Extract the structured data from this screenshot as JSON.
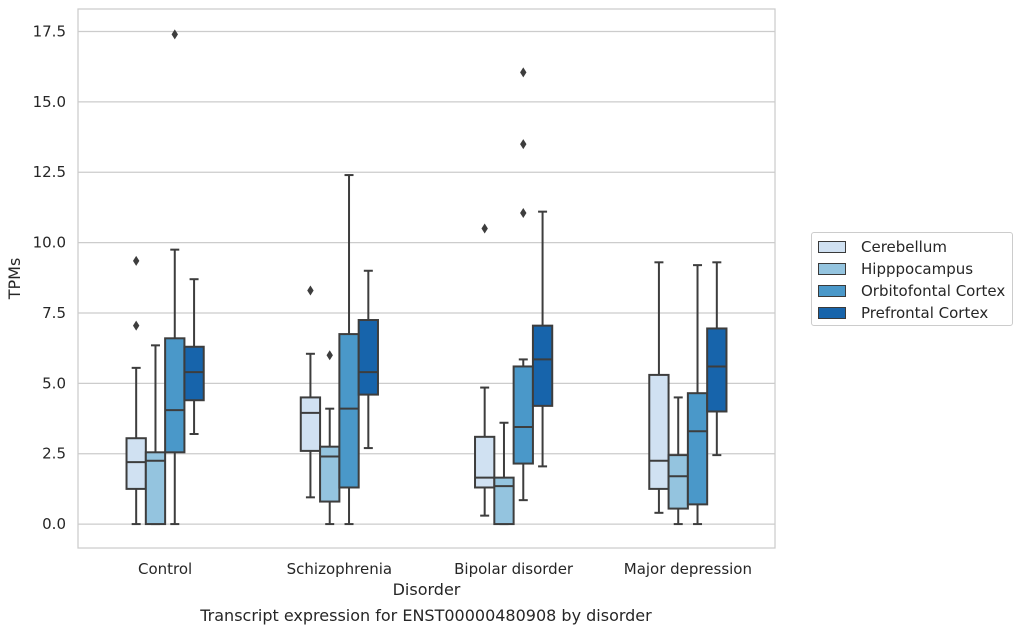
{
  "chart_data": {
    "type": "box",
    "caption": "Transcript expression for ENST00000480908 by disorder",
    "xlabel": "Disorder",
    "ylabel": "TPMs",
    "ylim": [
      -0.85,
      18.3
    ],
    "yticks": [
      0.0,
      2.5,
      5.0,
      7.5,
      10.0,
      12.5,
      15.0,
      17.5
    ],
    "ytick_labels": [
      "0.0",
      "2.5",
      "5.0",
      "7.5",
      "10.0",
      "12.5",
      "15.0",
      "17.5"
    ],
    "grid": "y",
    "legend_position": "right",
    "categories": [
      "Control",
      "Schizophrenia",
      "Bipolar disorder",
      "Major depression"
    ],
    "series": [
      {
        "name": "Cerebellum",
        "color": "#d0e1f2",
        "boxes": [
          {
            "whisker_low": 0.0,
            "q1": 1.25,
            "median": 2.2,
            "q3": 3.05,
            "whisker_high": 5.55,
            "outliers": [
              7.05,
              9.35
            ]
          },
          {
            "whisker_low": 0.95,
            "q1": 2.6,
            "median": 3.95,
            "q3": 4.5,
            "whisker_high": 6.05,
            "outliers": [
              8.3
            ]
          },
          {
            "whisker_low": 0.3,
            "q1": 1.3,
            "median": 1.65,
            "q3": 3.1,
            "whisker_high": 4.85,
            "outliers": [
              10.5
            ]
          },
          {
            "whisker_low": 0.4,
            "q1": 1.25,
            "median": 2.25,
            "q3": 5.3,
            "whisker_high": 9.3,
            "outliers": []
          }
        ]
      },
      {
        "name": "Hipppocampus",
        "color": "#94c4df",
        "boxes": [
          {
            "whisker_low": 0.0,
            "q1": 0.0,
            "median": 2.25,
            "q3": 2.55,
            "whisker_high": 6.35,
            "outliers": []
          },
          {
            "whisker_low": 0.0,
            "q1": 0.8,
            "median": 2.4,
            "q3": 2.75,
            "whisker_high": 4.1,
            "outliers": [
              6.0
            ]
          },
          {
            "whisker_low": 0.0,
            "q1": 0.0,
            "median": 1.35,
            "q3": 1.65,
            "whisker_high": 3.6,
            "outliers": []
          },
          {
            "whisker_low": 0.0,
            "q1": 0.55,
            "median": 1.7,
            "q3": 2.45,
            "whisker_high": 4.5,
            "outliers": []
          }
        ]
      },
      {
        "name": "Orbitofontal Cortex",
        "color": "#4a98c9",
        "boxes": [
          {
            "whisker_low": 0.0,
            "q1": 2.55,
            "median": 4.05,
            "q3": 6.6,
            "whisker_high": 9.75,
            "outliers": [
              17.4
            ]
          },
          {
            "whisker_low": 0.0,
            "q1": 1.3,
            "median": 4.1,
            "q3": 6.75,
            "whisker_high": 12.4,
            "outliers": []
          },
          {
            "whisker_low": 0.85,
            "q1": 2.15,
            "median": 3.45,
            "q3": 5.6,
            "whisker_high": 5.85,
            "outliers": [
              11.05,
              13.5,
              16.05
            ]
          },
          {
            "whisker_low": 0.0,
            "q1": 0.7,
            "median": 3.3,
            "q3": 4.65,
            "whisker_high": 9.2,
            "outliers": []
          }
        ]
      },
      {
        "name": "Prefrontal Cortex",
        "color": "#1764ab",
        "boxes": [
          {
            "whisker_low": 3.2,
            "q1": 4.4,
            "median": 5.4,
            "q3": 6.3,
            "whisker_high": 8.7,
            "outliers": []
          },
          {
            "whisker_low": 2.7,
            "q1": 4.6,
            "median": 5.4,
            "q3": 7.25,
            "whisker_high": 9.0,
            "outliers": []
          },
          {
            "whisker_low": 2.05,
            "q1": 4.2,
            "median": 5.85,
            "q3": 7.05,
            "whisker_high": 11.1,
            "outliers": []
          },
          {
            "whisker_low": 2.45,
            "q1": 4.0,
            "median": 5.6,
            "q3": 6.95,
            "whisker_high": 9.3,
            "outliers": []
          }
        ]
      }
    ]
  }
}
